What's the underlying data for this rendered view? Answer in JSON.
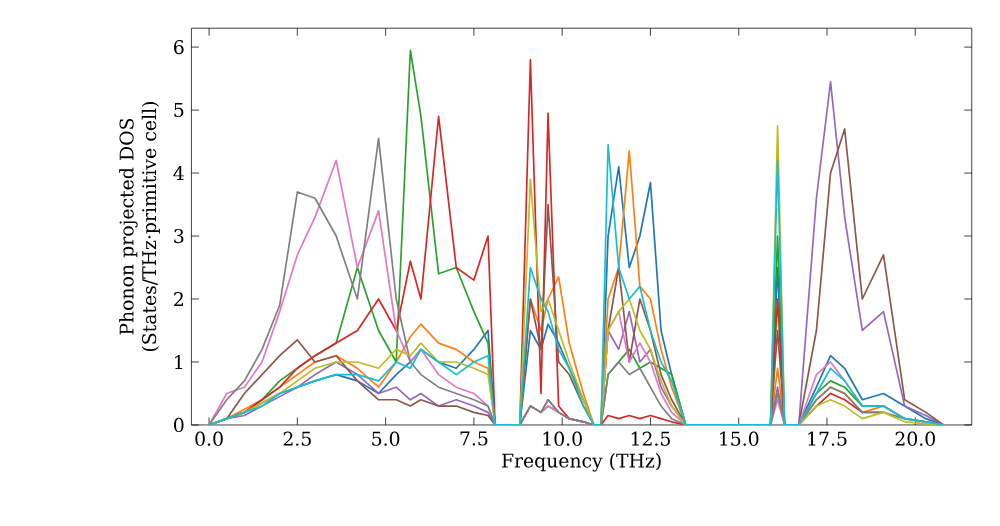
{
  "chart_data": {
    "type": "line",
    "xlabel": "Frequency (THz)",
    "ylabel": "Phonon projected DOS (States/THz·primitive cell)",
    "xlim": [
      -0.5,
      21.6
    ],
    "ylim": [
      0,
      6.3
    ],
    "xticks": [
      {
        "value": 0,
        "label": "0.0"
      },
      {
        "value": 2.5,
        "label": "2.5"
      },
      {
        "value": 5,
        "label": "5.0"
      },
      {
        "value": 7.5,
        "label": "7.5"
      },
      {
        "value": 10,
        "label": "10.0"
      },
      {
        "value": 12.5,
        "label": "12.5"
      },
      {
        "value": 15,
        "label": "15.0"
      },
      {
        "value": 17.5,
        "label": "17.5"
      },
      {
        "value": 20,
        "label": "20.0"
      }
    ],
    "yticks": [
      0,
      1,
      2,
      3,
      4,
      5,
      6
    ],
    "grid": false,
    "legend": false,
    "marker": "none",
    "line_style": "solid",
    "x": [
      0,
      0.5,
      1,
      1.5,
      2,
      2.5,
      3,
      3.6,
      4.2,
      4.8,
      5.3,
      5.7,
      6.0,
      6.5,
      7.0,
      7.5,
      7.9,
      8.1,
      8.8,
      9.1,
      9.4,
      9.6,
      9.9,
      10.2,
      10.6,
      10.9,
      11.1,
      11.3,
      11.6,
      11.9,
      12.2,
      12.5,
      12.8,
      13.1,
      13.5,
      15.9,
      16.1,
      16.3,
      16.7,
      17.2,
      17.6,
      18.0,
      18.5,
      19.1,
      19.7,
      20.3,
      20.8
    ],
    "series": [
      {
        "color": "#1f77b4",
        "values": [
          0,
          0.1,
          0.2,
          0.35,
          0.5,
          0.6,
          0.7,
          0.8,
          0.7,
          0.5,
          0.8,
          1.0,
          1.2,
          1.0,
          0.9,
          1.2,
          1.5,
          0,
          0,
          1.5,
          1.2,
          1.6,
          1.3,
          0.9,
          0.4,
          0,
          0,
          3.0,
          4.1,
          2.5,
          3.0,
          3.85,
          1.5,
          0.8,
          0,
          0,
          2.5,
          0,
          0,
          0.6,
          1.1,
          0.9,
          0.4,
          0.5,
          0.3,
          0.1,
          0
        ]
      },
      {
        "color": "#ff7f0e",
        "values": [
          0,
          0.1,
          0.25,
          0.4,
          0.6,
          0.8,
          1.0,
          1.1,
          0.9,
          0.6,
          1.0,
          1.4,
          1.6,
          1.3,
          1.2,
          1.0,
          0.9,
          0,
          0,
          2.0,
          1.5,
          2.0,
          2.35,
          1.3,
          0.5,
          0,
          0,
          2.0,
          2.5,
          4.35,
          2.2,
          2.0,
          1.2,
          0.6,
          0,
          0,
          0.9,
          0,
          0,
          0.4,
          0.6,
          0.5,
          0.2,
          0.3,
          0.1,
          null,
          null
        ]
      },
      {
        "color": "#2ca02c",
        "values": [
          0,
          0.1,
          0.2,
          0.4,
          0.7,
          0.9,
          1.1,
          1.3,
          2.5,
          1.5,
          1.0,
          5.95,
          4.9,
          2.4,
          2.5,
          1.8,
          1.3,
          0,
          0,
          0.3,
          0.2,
          0.3,
          0.2,
          0.1,
          0.05,
          0,
          0,
          0.8,
          1.0,
          1.2,
          0.9,
          1.0,
          0.9,
          0.8,
          0,
          0,
          3.0,
          0,
          0,
          0.5,
          0.7,
          0.6,
          0.3,
          0.3,
          0.1,
          0.05,
          0
        ]
      },
      {
        "color": "#d62728",
        "values": [
          0,
          0.1,
          0.2,
          0.4,
          0.6,
          0.9,
          1.1,
          1.3,
          1.5,
          2.0,
          1.5,
          2.6,
          2.0,
          4.9,
          2.5,
          2.3,
          3.0,
          0,
          0,
          5.8,
          0.5,
          4.95,
          0.3,
          0.1,
          0.05,
          0,
          0,
          0.15,
          0.1,
          0.15,
          0.1,
          0.15,
          0.1,
          0.05,
          0,
          0,
          2.0,
          0,
          0,
          0.3,
          0.5,
          0.4,
          0.2,
          0.2,
          null,
          null,
          null
        ]
      },
      {
        "color": "#9467bd",
        "values": [
          0,
          0.1,
          0.15,
          0.3,
          0.45,
          0.6,
          0.8,
          1.0,
          0.8,
          0.5,
          0.6,
          0.4,
          0.5,
          0.3,
          0.4,
          0.3,
          0.2,
          0,
          0,
          0.3,
          0.2,
          0.4,
          0.2,
          0.1,
          0.05,
          0,
          0,
          1.5,
          1.2,
          1.8,
          1.0,
          1.2,
          0.6,
          0.3,
          0,
          0,
          0.6,
          0,
          0,
          3.6,
          5.45,
          3.3,
          1.5,
          1.8,
          0.3,
          0.15,
          0
        ]
      },
      {
        "color": "#8c564b",
        "values": [
          0,
          0.1,
          0.5,
          0.8,
          1.1,
          1.35,
          1.0,
          1.1,
          0.7,
          0.4,
          0.4,
          0.3,
          0.4,
          0.3,
          0.3,
          0.2,
          0.15,
          0,
          0,
          2.0,
          1.2,
          3.5,
          1.0,
          0.8,
          0.3,
          0,
          0,
          1.5,
          2.5,
          1.0,
          2.0,
          1.5,
          0.8,
          0.4,
          0,
          0,
          1.5,
          0,
          0,
          1.5,
          4.0,
          4.7,
          2.0,
          2.7,
          0.4,
          0.2,
          0
        ]
      },
      {
        "color": "#e377c2",
        "values": [
          0,
          0.5,
          0.6,
          1.0,
          1.8,
          2.7,
          3.3,
          4.2,
          2.5,
          3.4,
          1.5,
          1.0,
          1.2,
          0.8,
          0.6,
          0.5,
          0.3,
          0,
          0,
          0.3,
          0.2,
          0.3,
          0.2,
          0.1,
          0.05,
          0,
          0,
          1.5,
          1.8,
          1.0,
          1.3,
          1.0,
          0.5,
          0.2,
          0,
          0,
          0.4,
          0,
          0,
          0.8,
          1.0,
          0.7,
          0.3,
          0.3,
          0.1,
          0.05,
          0
        ]
      },
      {
        "color": "#7f7f7f",
        "values": [
          0,
          0.4,
          0.7,
          1.2,
          1.9,
          3.7,
          3.6,
          3.0,
          2.0,
          4.55,
          2.0,
          1.0,
          0.8,
          0.6,
          0.5,
          0.4,
          0.3,
          0,
          0,
          0.3,
          0.2,
          0.4,
          0.2,
          0.1,
          0.05,
          0,
          0,
          0.8,
          1.0,
          0.8,
          0.9,
          0.6,
          0.3,
          0.1,
          0,
          0,
          0.5,
          0,
          0,
          0.4,
          0.6,
          0.5,
          0.2,
          0.2,
          0.1,
          0.05,
          0
        ]
      },
      {
        "color": "#bcbd22",
        "values": [
          0,
          0.1,
          0.2,
          0.35,
          0.5,
          0.7,
          0.9,
          1.0,
          1.0,
          0.9,
          1.2,
          1.1,
          1.3,
          1.0,
          1.0,
          0.9,
          0.8,
          0,
          0,
          3.9,
          1.8,
          2.0,
          1.5,
          1.0,
          0.4,
          0,
          0,
          1.5,
          1.8,
          2.0,
          1.5,
          1.2,
          0.7,
          0.3,
          0,
          0,
          4.75,
          0,
          0,
          0.3,
          0.4,
          0.3,
          0.1,
          0.2,
          0.05,
          0.02,
          0
        ]
      },
      {
        "color": "#17becf",
        "values": [
          0,
          0.1,
          0.2,
          0.3,
          0.5,
          0.6,
          0.7,
          0.8,
          0.8,
          0.7,
          1.0,
          0.9,
          1.2,
          1.0,
          0.8,
          1.0,
          1.1,
          0,
          0,
          2.5,
          2.0,
          1.8,
          1.2,
          0.9,
          0.3,
          0,
          0,
          4.45,
          2.5,
          2.0,
          2.2,
          1.5,
          1.0,
          0.7,
          0,
          0,
          4.2,
          0,
          0,
          0.5,
          0.9,
          0.7,
          0.3,
          0.3,
          0.1,
          0.05,
          0
        ]
      }
    ]
  }
}
